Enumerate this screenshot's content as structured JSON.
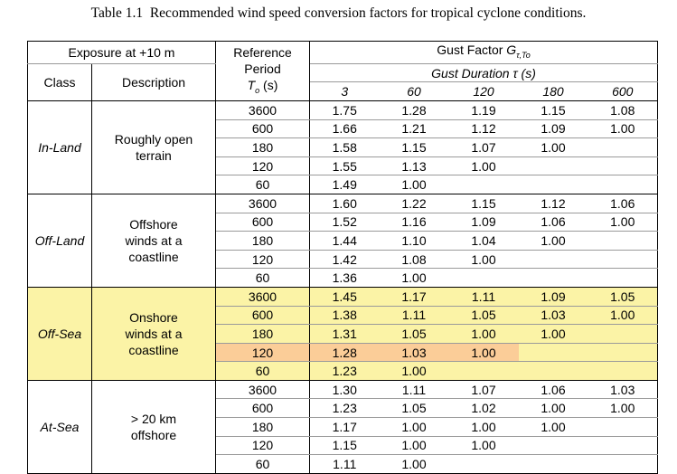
{
  "caption": {
    "label": "Table 1.1",
    "title": "Recommended wind speed conversion factors for tropical cyclone conditions."
  },
  "headers": {
    "exposure": "Exposure at +10 m",
    "class": "Class",
    "description": "Description",
    "reference_line1": "Reference",
    "reference_line2": "Period",
    "reference_symbol": "T",
    "reference_sub": "o",
    "reference_unit": " (s)",
    "gust_factor_prefix": "Gust Factor ",
    "gust_factor_symbol": "G",
    "gust_factor_sub": "τ,To",
    "gust_duration": "Gust Duration τ (s)",
    "durations": [
      "3",
      "60",
      "120",
      "180",
      "600"
    ]
  },
  "highlight_colors": {
    "off_sea": "#fbf3a6",
    "selected_row": "#fbcd98"
  },
  "groups": [
    {
      "class": "In-Land",
      "description": [
        "Roughly open",
        "terrain"
      ],
      "rows": [
        [
          "3600",
          "1.75",
          "1.28",
          "1.19",
          "1.15",
          "1.08"
        ],
        [
          "600",
          "1.66",
          "1.21",
          "1.12",
          "1.09",
          "1.00"
        ],
        [
          "180",
          "1.58",
          "1.15",
          "1.07",
          "1.00",
          ""
        ],
        [
          "120",
          "1.55",
          "1.13",
          "1.00",
          "",
          ""
        ],
        [
          "60",
          "1.49",
          "1.00",
          "",
          "",
          ""
        ]
      ]
    },
    {
      "class": "Off-Land",
      "description": [
        "Offshore",
        "winds at a",
        "coastline"
      ],
      "rows": [
        [
          "3600",
          "1.60",
          "1.22",
          "1.15",
          "1.12",
          "1.06"
        ],
        [
          "600",
          "1.52",
          "1.16",
          "1.09",
          "1.06",
          "1.00"
        ],
        [
          "180",
          "1.44",
          "1.10",
          "1.04",
          "1.00",
          ""
        ],
        [
          "120",
          "1.42",
          "1.08",
          "1.00",
          "",
          ""
        ],
        [
          "60",
          "1.36",
          "1.00",
          "",
          "",
          ""
        ]
      ]
    },
    {
      "class": "Off-Sea",
      "description": [
        "Onshore",
        "winds at a",
        "coastline"
      ],
      "rows": [
        [
          "3600",
          "1.45",
          "1.17",
          "1.11",
          "1.09",
          "1.05"
        ],
        [
          "600",
          "1.38",
          "1.11",
          "1.05",
          "1.03",
          "1.00"
        ],
        [
          "180",
          "1.31",
          "1.05",
          "1.00",
          "1.00",
          ""
        ],
        [
          "120",
          "1.28",
          "1.03",
          "1.00",
          "",
          ""
        ],
        [
          "60",
          "1.23",
          "1.00",
          "",
          "",
          ""
        ]
      ]
    },
    {
      "class": "At-Sea",
      "description": [
        "> 20 km",
        "offshore"
      ],
      "rows": [
        [
          "3600",
          "1.30",
          "1.11",
          "1.07",
          "1.06",
          "1.03"
        ],
        [
          "600",
          "1.23",
          "1.05",
          "1.02",
          "1.00",
          "1.00"
        ],
        [
          "180",
          "1.17",
          "1.00",
          "1.00",
          "1.00",
          ""
        ],
        [
          "120",
          "1.15",
          "1.00",
          "1.00",
          "",
          ""
        ],
        [
          "60",
          "1.11",
          "1.00",
          "",
          "",
          ""
        ]
      ]
    }
  ]
}
